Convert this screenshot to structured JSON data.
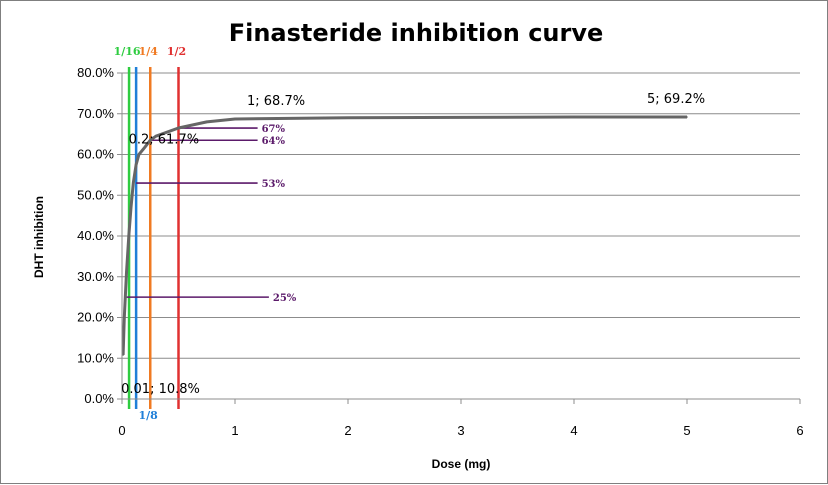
{
  "chart_data": {
    "type": "line",
    "title": "Finasteride inhibition curve",
    "xlabel": "Dose (mg)",
    "ylabel": "DHT inhibition",
    "xlim": [
      0,
      6
    ],
    "ylim": [
      0,
      0.8
    ],
    "x_ticks": [
      "0",
      "1",
      "2",
      "3",
      "4",
      "5",
      "6"
    ],
    "y_ticks": [
      "0.0%",
      "10.0%",
      "20.0%",
      "30.0%",
      "40.0%",
      "50.0%",
      "60.0%",
      "70.0%",
      "80.0%"
    ],
    "grid": true,
    "series": [
      {
        "x": [
          0.01,
          0.02,
          0.04,
          0.06,
          0.08,
          0.1,
          0.125,
          0.15,
          0.2,
          0.25,
          0.3,
          0.5,
          0.75,
          1,
          2,
          3,
          4,
          5
        ],
        "y": [
          0.108,
          0.2,
          0.31,
          0.4,
          0.47,
          0.53,
          0.575,
          0.6,
          0.617,
          0.635,
          0.645,
          0.665,
          0.68,
          0.687,
          0.69,
          0.691,
          0.692,
          0.692
        ],
        "color": "#666666"
      }
    ],
    "data_labels": [
      {
        "x": 0.01,
        "y": 0.108,
        "text": "0.01; 10.8%"
      },
      {
        "x": 0.2,
        "y": 0.617,
        "text": "0.2; 61.7%"
      },
      {
        "x": 1,
        "y": 0.687,
        "text": "1; 68.7%"
      },
      {
        "x": 5,
        "y": 0.692,
        "text": "5; 69.2%"
      }
    ],
    "dose_markers": [
      {
        "x": 0.0625,
        "text": "1/16",
        "color": "#2ecc40",
        "label_pos": "top"
      },
      {
        "x": 0.125,
        "text": "1/8",
        "color": "#1f7fd8",
        "label_pos": "bottom"
      },
      {
        "x": 0.25,
        "text": "1/4",
        "color": "#f07a22",
        "label_pos": "top"
      },
      {
        "x": 0.5,
        "text": "1/2",
        "color": "#e03030",
        "label_pos": "top"
      }
    ],
    "level_lines": [
      {
        "x_start": 0.04,
        "x_end": 1.3,
        "y": 0.25,
        "text": "25%"
      },
      {
        "x_start": 0.125,
        "x_end": 1.2,
        "y": 0.53,
        "text": "53%"
      },
      {
        "x_start": 0.25,
        "x_end": 1.2,
        "y": 0.635,
        "text": "64%"
      },
      {
        "x_start": 0.5,
        "x_end": 1.2,
        "y": 0.665,
        "text": "67%"
      }
    ],
    "level_line_color": "#5b1a6a"
  }
}
